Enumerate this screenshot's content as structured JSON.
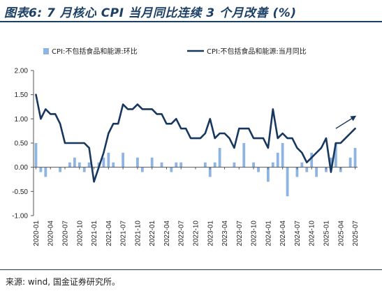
{
  "header": {
    "title": "图表6: 7 月核心 CPI 当月同比连续 3 个月改善 (%)"
  },
  "footer": {
    "source": "来源: wind, 国金证券研究所。"
  },
  "chart_data": {
    "type": "bar+line",
    "title": "图表6: 7 月核心 CPI 当月同比连续 3 个月改善 (%)",
    "xlabel": "",
    "ylabel": "",
    "ylim": [
      -1.0,
      2.0
    ],
    "yticks": [
      "2.00",
      "1.50",
      "1.00",
      "0.50",
      "0.00",
      "-0.50",
      "-1.00"
    ],
    "ytick_values": [
      2.0,
      1.5,
      1.0,
      0.5,
      0.0,
      -0.5,
      -1.0
    ],
    "grid": false,
    "legend_position": "top",
    "x": [
      "2020-01",
      "2020-02",
      "2020-03",
      "2020-04",
      "2020-05",
      "2020-06",
      "2020-07",
      "2020-08",
      "2020-09",
      "2020-10",
      "2020-11",
      "2020-12",
      "2021-01",
      "2021-02",
      "2021-03",
      "2021-04",
      "2021-05",
      "2021-06",
      "2021-07",
      "2021-08",
      "2021-09",
      "2021-10",
      "2021-11",
      "2021-12",
      "2022-01",
      "2022-02",
      "2022-03",
      "2022-04",
      "2022-05",
      "2022-06",
      "2022-07",
      "2022-08",
      "2022-09",
      "2022-10",
      "2022-11",
      "2022-12",
      "2023-01",
      "2023-02",
      "2023-03",
      "2023-04",
      "2023-05",
      "2023-06",
      "2023-07",
      "2023-08",
      "2023-09",
      "2023-10",
      "2023-11",
      "2023-12",
      "2024-01",
      "2024-02",
      "2024-03",
      "2024-04",
      "2024-05",
      "2024-06",
      "2024-07",
      "2024-08",
      "2024-09",
      "2024-10",
      "2024-11",
      "2024-12",
      "2025-01",
      "2025-02",
      "2025-03",
      "2025-04",
      "2025-05",
      "2025-06",
      "2025-07"
    ],
    "xtick_labels": [
      "2020-01",
      "2020-04",
      "2020-07",
      "2020-10",
      "2021-01",
      "2021-04",
      "2021-07",
      "2021-10",
      "2022-01",
      "2022-04",
      "2022-07",
      "2022-10",
      "2023-01",
      "2023-04",
      "2023-07",
      "2023-10",
      "2024-01",
      "2024-04",
      "2024-07",
      "2024-10",
      "2025-01",
      "2025-04",
      "2025-07"
    ],
    "series": [
      {
        "name": "CPI:不包括食品和能源:环比",
        "type": "bar",
        "color": "#8eb4e3",
        "values": [
          0.5,
          -0.1,
          -0.2,
          0.0,
          0.0,
          -0.1,
          0.0,
          0.1,
          0.2,
          0.1,
          -0.1,
          0.1,
          0.0,
          0.1,
          0.2,
          0.3,
          0.1,
          0.0,
          0.3,
          0.0,
          0.0,
          0.2,
          -0.1,
          0.0,
          0.2,
          0.0,
          0.1,
          0.0,
          -0.1,
          0.1,
          0.1,
          0.0,
          0.0,
          0.0,
          0.0,
          0.1,
          -0.2,
          0.1,
          0.4,
          0.0,
          0.0,
          0.1,
          0.0,
          0.5,
          0.0,
          0.1,
          -0.1,
          0.0,
          -0.3,
          0.1,
          0.3,
          0.5,
          -0.6,
          0.0,
          -0.2,
          0.1,
          -0.1,
          0.3,
          -0.2,
          0.0,
          -0.1,
          0.2,
          0.5,
          -0.1,
          0.0,
          0.2,
          0.4
        ]
      },
      {
        "name": "CPI:不包括食品和能源:当月同比",
        "type": "line",
        "color": "#17375e",
        "values": [
          1.5,
          1.0,
          1.2,
          1.1,
          1.1,
          0.9,
          0.5,
          0.5,
          0.5,
          0.5,
          0.5,
          0.4,
          -0.3,
          0.0,
          0.3,
          0.7,
          0.9,
          0.9,
          1.3,
          1.2,
          1.2,
          1.3,
          1.2,
          1.2,
          1.2,
          1.1,
          1.1,
          0.9,
          0.9,
          1.0,
          0.8,
          0.8,
          0.6,
          0.6,
          0.6,
          0.7,
          1.0,
          0.6,
          0.7,
          0.7,
          0.6,
          0.4,
          0.8,
          0.8,
          0.8,
          0.6,
          0.6,
          0.6,
          0.4,
          1.2,
          0.6,
          0.7,
          0.6,
          0.6,
          0.4,
          0.3,
          0.1,
          0.2,
          0.3,
          0.4,
          0.6,
          -0.1,
          0.5,
          0.5,
          0.6,
          0.7,
          0.8
        ]
      }
    ],
    "annotations": [
      {
        "type": "arrow",
        "color": "#17375e",
        "from": [
          "2025-03",
          0.8
        ],
        "to": [
          "2025-07",
          1.05
        ]
      }
    ]
  }
}
